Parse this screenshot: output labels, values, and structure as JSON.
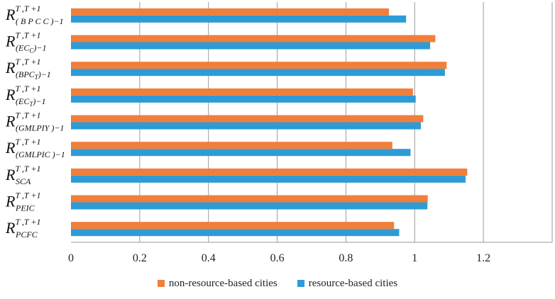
{
  "chart_data": {
    "type": "bar",
    "orientation": "horizontal",
    "categories": [
      {
        "base": "R",
        "sup": "T ,T +1",
        "sub": "( B P C C )",
        "sub_sub": "",
        "tail": "−1"
      },
      {
        "base": "R",
        "sup": "T ,T +1",
        "sub": "(EC",
        "sub_sub": "C",
        "tail": ")−1"
      },
      {
        "base": "R",
        "sup": "T ,T +1",
        "sub": "(BPC",
        "sub_sub": "T",
        "tail": ")−1"
      },
      {
        "base": "R",
        "sup": "T ,T +1",
        "sub": "(EC",
        "sub_sub": "T",
        "tail": ")−1"
      },
      {
        "base": "R",
        "sup": "T ,T +1",
        "sub": "(GMLPIY )",
        "sub_sub": "",
        "tail": "−1"
      },
      {
        "base": "R",
        "sup": "T ,T +1",
        "sub": "(GMLPIC )",
        "sub_sub": "",
        "tail": "−1"
      },
      {
        "base": "R",
        "sup": "T ,T +1",
        "sub": "SCA",
        "sub_sub": "",
        "tail": ""
      },
      {
        "base": "R",
        "sup": "T ,T +1",
        "sub": "PEIC",
        "sub_sub": "",
        "tail": ""
      },
      {
        "base": "R",
        "sup": "T ,T +1",
        "sub": "PCFC",
        "sub_sub": "",
        "tail": ""
      }
    ],
    "series": [
      {
        "name": "non-resource-based cities",
        "color": "#f07f3c",
        "values": [
          0.925,
          1.06,
          1.093,
          0.995,
          1.025,
          0.935,
          1.153,
          1.038,
          0.94
        ]
      },
      {
        "name": "resource-based cities",
        "color": "#2e9bd6",
        "values": [
          0.975,
          1.045,
          1.088,
          1.003,
          1.018,
          0.988,
          1.148,
          1.037,
          0.955
        ]
      }
    ],
    "xlim": [
      0,
      1.4
    ],
    "xticks": [
      "0",
      "0.2",
      "0.4",
      "0.6",
      "0.8",
      "1",
      "1.2"
    ],
    "grid": true,
    "title": "",
    "xlabel": "",
    "ylabel": ""
  },
  "legend": {
    "items": [
      {
        "label": "non-resource-based cities",
        "color": "#f07f3c"
      },
      {
        "label": "resource-based cities",
        "color": "#2e9bd6"
      }
    ]
  }
}
